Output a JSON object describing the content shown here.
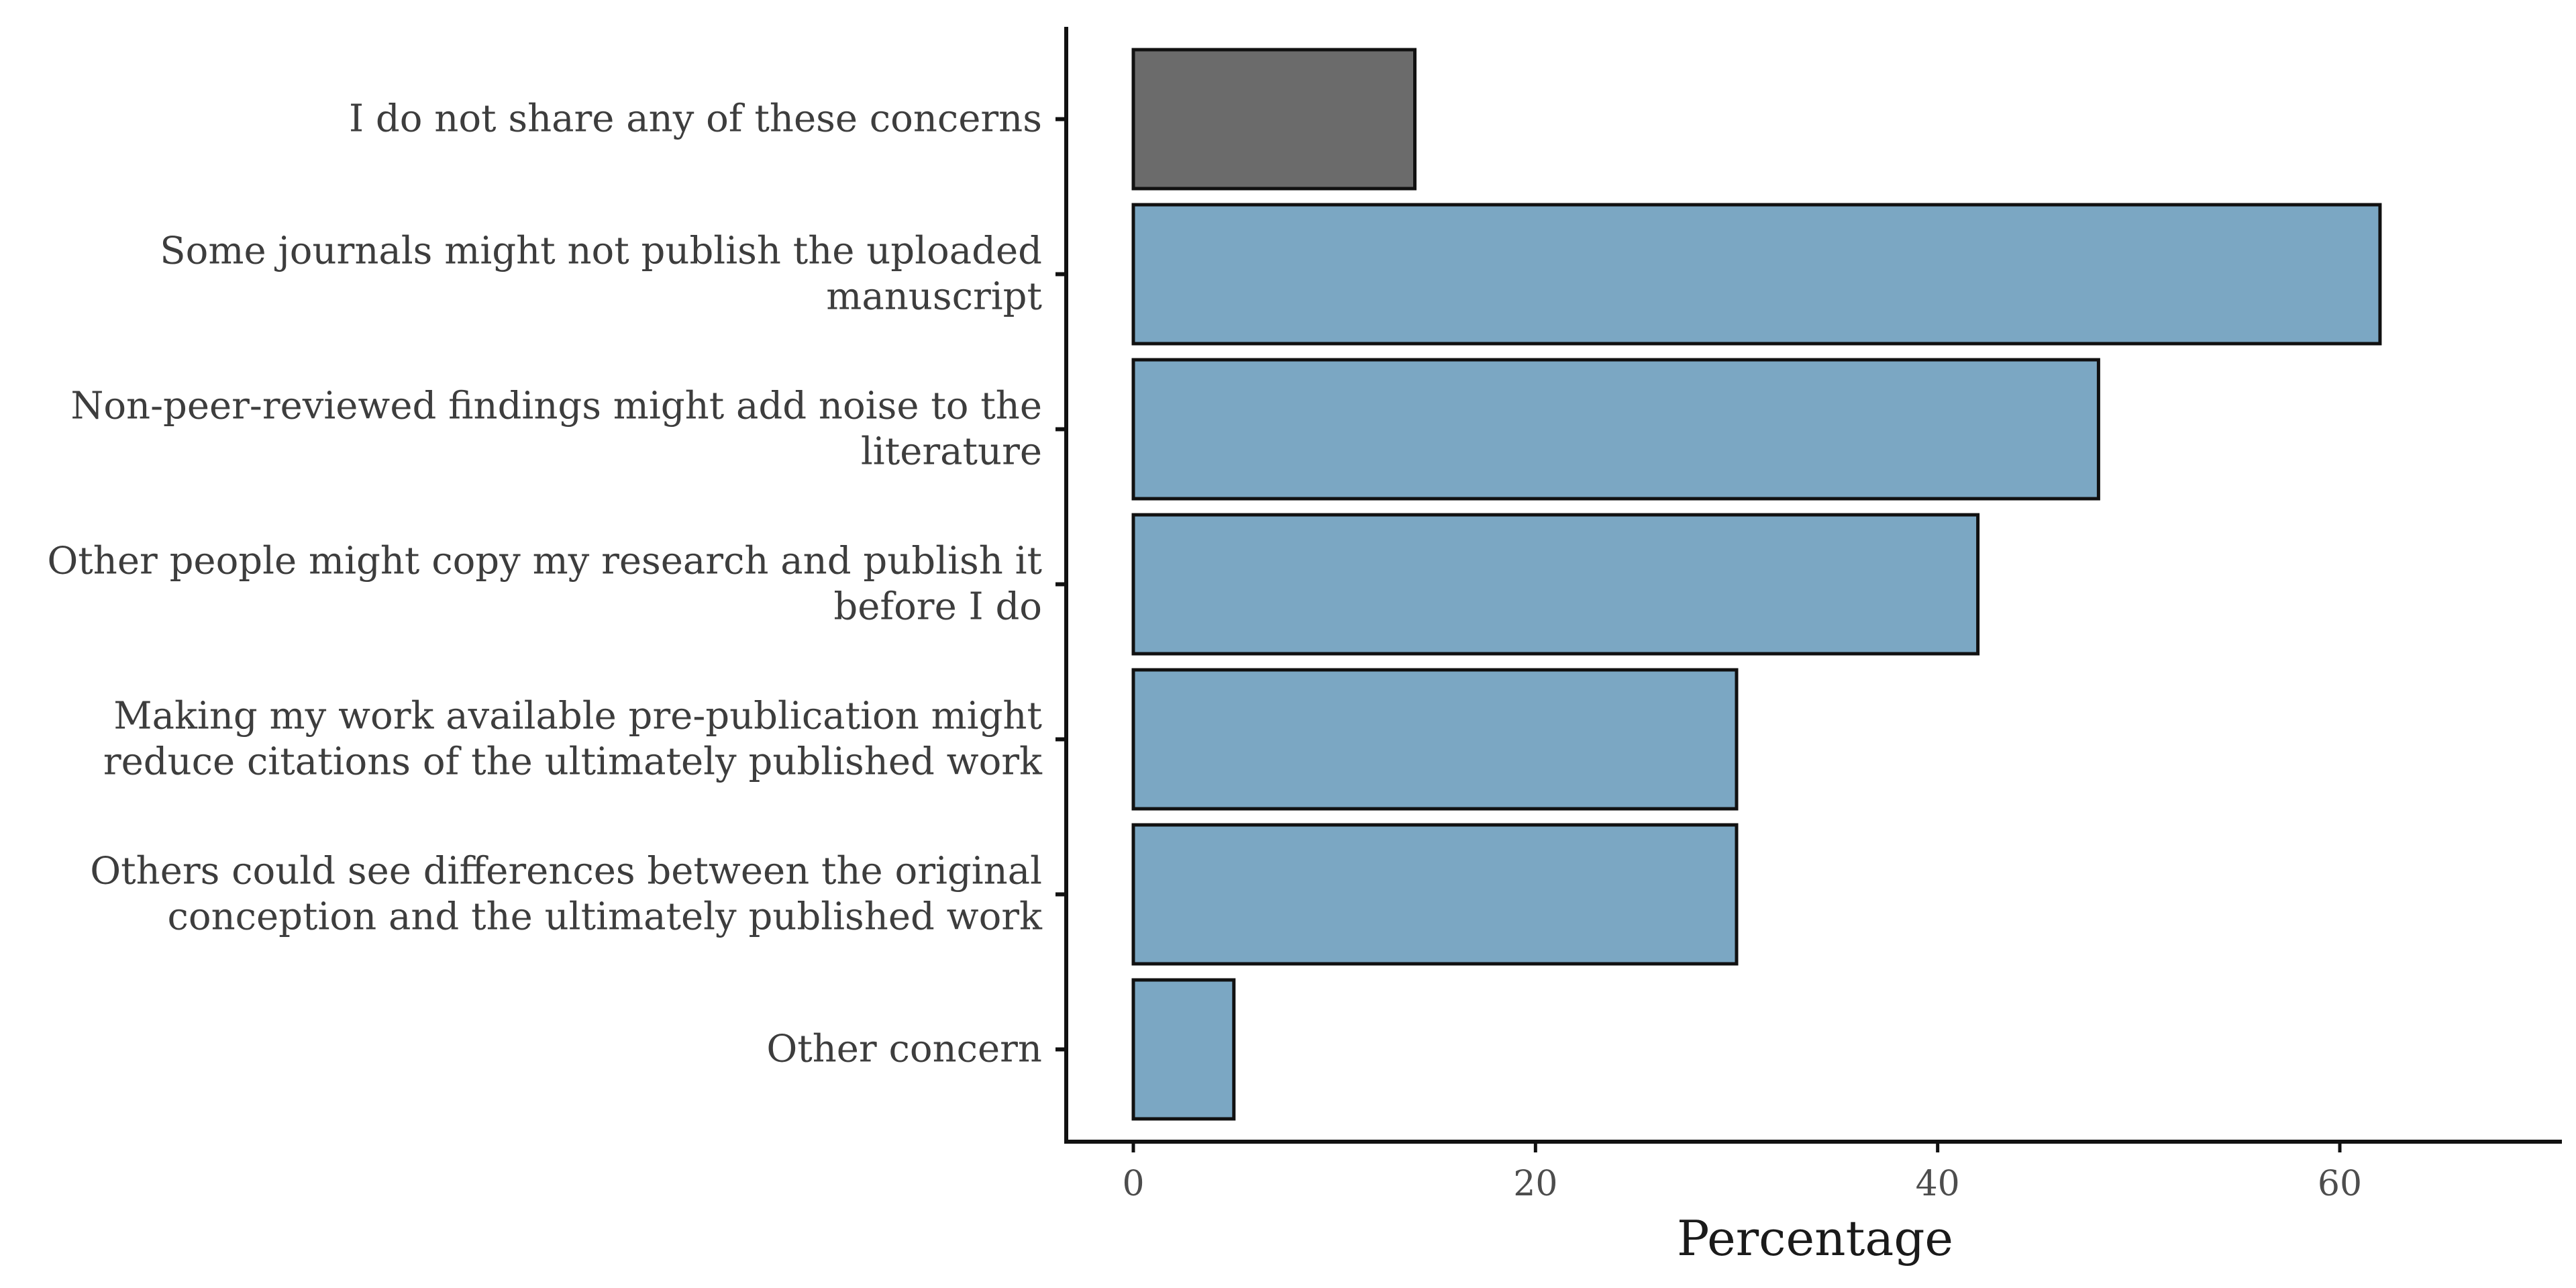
{
  "chart_data": {
    "type": "bar",
    "orientation": "horizontal",
    "title": "",
    "xlabel": "Percentage",
    "ylabel": "",
    "xlim": [
      -3.4,
      73
    ],
    "xticks": [
      0,
      20,
      40,
      60
    ],
    "grid": false,
    "categories": [
      [
        "I do not share any of these concerns"
      ],
      [
        "Some journals might not publish the uploaded",
        "manuscript"
      ],
      [
        "Non-peer-reviewed findings might add noise to the",
        "literature"
      ],
      [
        "Other people might copy my research and publish it",
        "before I do"
      ],
      [
        "Making my work available pre-publication might",
        "reduce citations of the ultimately published work"
      ],
      [
        "Others could see differences between the original",
        "conception and the ultimately published work"
      ],
      [
        "Other concern"
      ]
    ],
    "values": [
      14,
      62,
      48,
      42,
      30,
      30,
      5
    ],
    "bar_colors": [
      "#6b6b6b",
      "#7ba7c3",
      "#7ba7c3",
      "#7ba7c3",
      "#7ba7c3",
      "#7ba7c3",
      "#7ba7c3"
    ],
    "bar_outline": "#111111",
    "axis_color": "#111111"
  }
}
